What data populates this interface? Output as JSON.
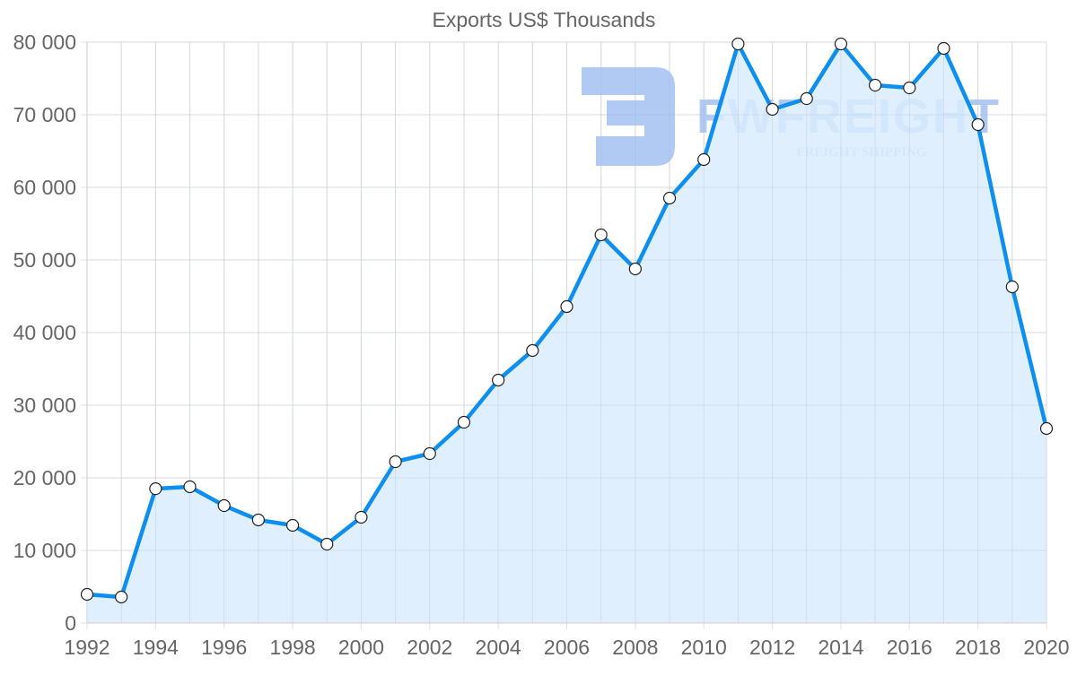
{
  "chart_data": {
    "type": "area",
    "title": "Exports US$ Thousands",
    "xlabel": "",
    "ylabel": "",
    "x": [
      1992,
      1993,
      1994,
      1995,
      1996,
      1997,
      1998,
      1999,
      2000,
      2001,
      2002,
      2003,
      2004,
      2005,
      2006,
      2007,
      2008,
      2009,
      2010,
      2011,
      2012,
      2013,
      2014,
      2015,
      2016,
      2017,
      2018,
      2019,
      2020
    ],
    "series": [
      {
        "name": "Exports US$ Thousands",
        "values": [
          3950,
          3580,
          18500,
          18770,
          16170,
          14200,
          13460,
          10860,
          14570,
          22220,
          23330,
          27650,
          33460,
          37530,
          43580,
          53460,
          48770,
          58520,
          63830,
          79750,
          70740,
          72220,
          79750,
          74070,
          73700,
          79140,
          68640,
          46300,
          26790
        ],
        "line_color": "#0e8ff0",
        "fill_color": "#d9ecfd",
        "marker": "circle-white"
      }
    ],
    "x_ticks": [
      "1992",
      "1994",
      "1996",
      "1998",
      "2000",
      "2002",
      "2004",
      "2006",
      "2008",
      "2010",
      "2012",
      "2014",
      "2016",
      "2018",
      "2020"
    ],
    "y_ticks": [
      "0",
      "10 000",
      "20 000",
      "30 000",
      "40 000",
      "50 000",
      "60 000",
      "70 000",
      "80 000"
    ],
    "ylim": [
      0,
      80000
    ],
    "xlim": [
      1992,
      2020
    ],
    "grid": true,
    "legend": null
  },
  "watermark": {
    "brand": "FWFREIGHT",
    "tagline": "FREIGHT SHIPPING",
    "color": "#8fb4ee"
  }
}
